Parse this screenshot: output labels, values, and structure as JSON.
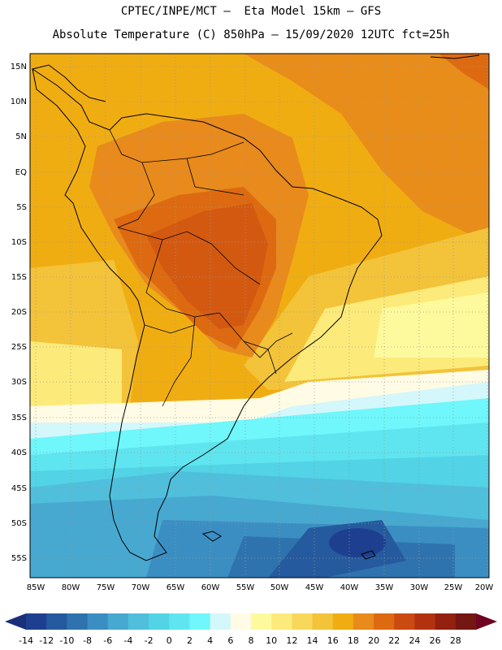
{
  "header": {
    "line1": "CPTEC/INPE/MCT –  Eta Model 15km – GFS",
    "line2": "Absolute Temperature (C) 850hPa – 15/09/2020 12UTC fct=25h"
  },
  "map": {
    "lat_labels": [
      "15N",
      "10N",
      "5N",
      "EQ",
      "5S",
      "10S",
      "15S",
      "20S",
      "25S",
      "30S",
      "35S",
      "40S",
      "45S",
      "50S",
      "55S"
    ],
    "lon_labels": [
      "85W",
      "80W",
      "75W",
      "70W",
      "65W",
      "60W",
      "55W",
      "50W",
      "45W",
      "40W",
      "35W",
      "30W",
      "25W",
      "20W"
    ],
    "grid": "dotted"
  },
  "colorbar": {
    "ticks": [
      "-14",
      "-12",
      "-10",
      "-8",
      "-6",
      "-4",
      "-2",
      "0",
      "2",
      "4",
      "6",
      "8",
      "10",
      "12",
      "14",
      "16",
      "18",
      "20",
      "22",
      "24",
      "26",
      "28"
    ],
    "colors": [
      "#1e3f8f",
      "#255a9e",
      "#2f73ae",
      "#3b8ec2",
      "#47a8d0",
      "#4fbfdc",
      "#52d3e6",
      "#5fe5ef",
      "#6ff7fb",
      "#d3f7fb",
      "#fffbe5",
      "#fdfa9d",
      "#fceb7a",
      "#f8d85a",
      "#f3c33a",
      "#f0ad12",
      "#e88a1c",
      "#dd6a10",
      "#ca4a12",
      "#b23210",
      "#942010",
      "#741612"
    ],
    "left_arrow_color": "#1a2f7a",
    "right_arrow_color": "#6e0420"
  }
}
